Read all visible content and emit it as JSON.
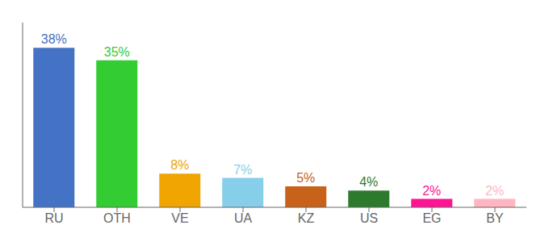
{
  "chart_data": {
    "type": "bar",
    "categories": [
      "RU",
      "OTH",
      "VE",
      "UA",
      "KZ",
      "US",
      "EG",
      "BY"
    ],
    "values": [
      38,
      35,
      8,
      7,
      5,
      4,
      2,
      2
    ],
    "value_labels": [
      "38%",
      "35%",
      "8%",
      "7%",
      "5%",
      "4%",
      "2%",
      "2%"
    ],
    "data_labels": true,
    "colors": [
      "#4472c4",
      "#33cc33",
      "#f0a500",
      "#87ceeb",
      "#c8621a",
      "#2d7a2d",
      "#ff1493",
      "#ffb6c1"
    ],
    "ylim": [
      0,
      44
    ],
    "tick_labels": "x",
    "grid": false
  }
}
